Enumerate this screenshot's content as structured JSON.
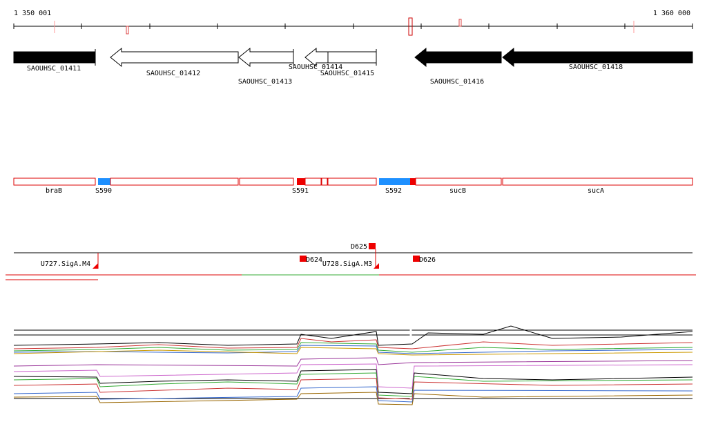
{
  "ruler": {
    "start": "1 350 001",
    "end": "1 360 000"
  },
  "genes": [
    {
      "label": "SAOUHSC_01411"
    },
    {
      "label": "SAOUHSC_01412"
    },
    {
      "label": "SAOUHSC_01413"
    },
    {
      "label": "SAOUHSC_01414"
    },
    {
      "label": "SAOUHSC_01415"
    },
    {
      "label": "SAOUHSC_01416"
    },
    {
      "label": "SAOUHSC_01418"
    }
  ],
  "segments": [
    {
      "label": "braB"
    },
    {
      "label": "S590"
    },
    {
      "label": "S591"
    },
    {
      "label": "S592"
    },
    {
      "label": "sucB"
    },
    {
      "label": "sucA"
    }
  ],
  "features": [
    {
      "label": "D625"
    },
    {
      "label": "U727.SigA.M4"
    },
    {
      "label": "D624"
    },
    {
      "label": "U728.SigA.M3"
    },
    {
      "label": "D626"
    }
  ]
}
